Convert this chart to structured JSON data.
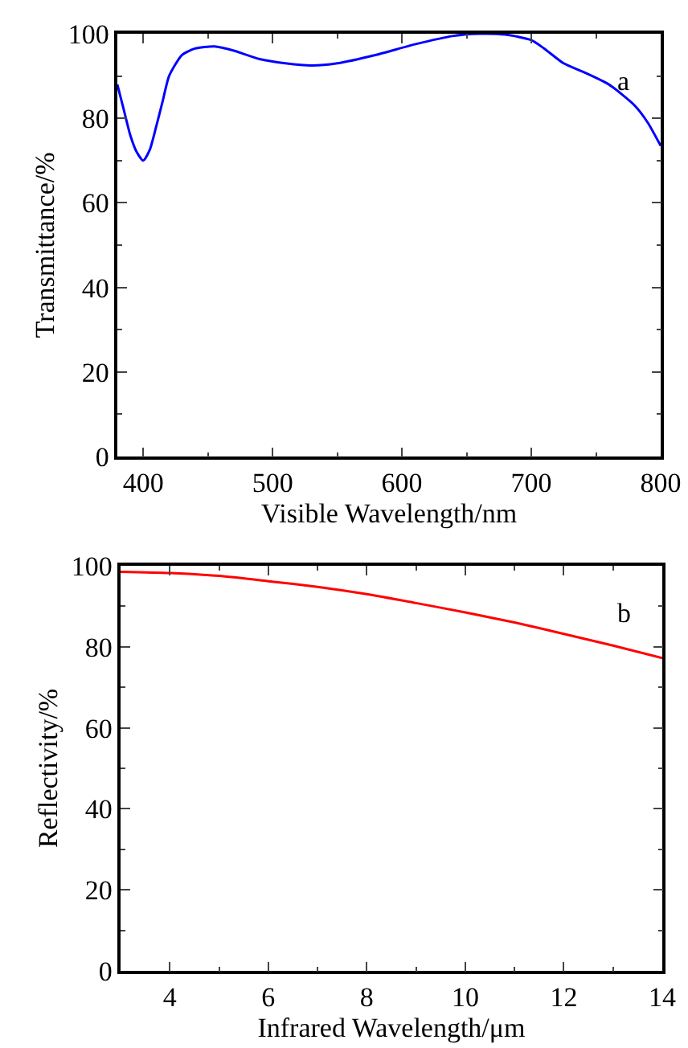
{
  "chart_data": [
    {
      "type": "line",
      "xlabel": "Visible Wavelength/nm",
      "ylabel": "Transmittance/%",
      "annotations": [
        "a"
      ],
      "xlim": [
        380,
        800
      ],
      "xticks": [
        400,
        500,
        600,
        700,
        800
      ],
      "ylim": [
        0,
        100
      ],
      "yticks": [
        0,
        20,
        40,
        60,
        80,
        100
      ],
      "grid": false,
      "marker": "none",
      "line_style": "solid",
      "series": [
        {
          "color": "#0000ff",
          "x": [
            380,
            385,
            390,
            395,
            400,
            405,
            410,
            415,
            420,
            430,
            440,
            455,
            470,
            490,
            510,
            530,
            550,
            580,
            610,
            640,
            660,
            680,
            700,
            710,
            725,
            740,
            760,
            780,
            790,
            800
          ],
          "values": [
            88,
            82,
            76,
            72,
            70,
            72.5,
            78,
            84,
            90,
            95,
            96.5,
            97,
            96,
            94,
            93,
            92.5,
            93,
            95,
            97.5,
            99.5,
            100,
            99.8,
            98.5,
            96.5,
            93,
            91,
            88,
            83,
            79,
            73.5
          ]
        }
      ]
    },
    {
      "type": "line",
      "xlabel": "Infrared Wavelength/μm",
      "ylabel": "Reflectivity/%",
      "annotations": [
        "b"
      ],
      "xlim": [
        3,
        14
      ],
      "xticks": [
        4,
        6,
        8,
        10,
        12,
        14
      ],
      "ylim": [
        0,
        100
      ],
      "yticks": [
        0,
        20,
        40,
        60,
        80,
        100
      ],
      "grid": false,
      "marker": "none",
      "line_style": "solid",
      "series": [
        {
          "color": "#ff0000",
          "x": [
            3,
            4,
            5,
            6,
            7,
            8,
            9,
            10,
            11,
            12,
            13,
            14
          ],
          "values": [
            98.5,
            98.2,
            97.5,
            96.2,
            94.8,
            93,
            90.8,
            88.5,
            86,
            83.2,
            80.3,
            77.2
          ]
        }
      ]
    }
  ]
}
